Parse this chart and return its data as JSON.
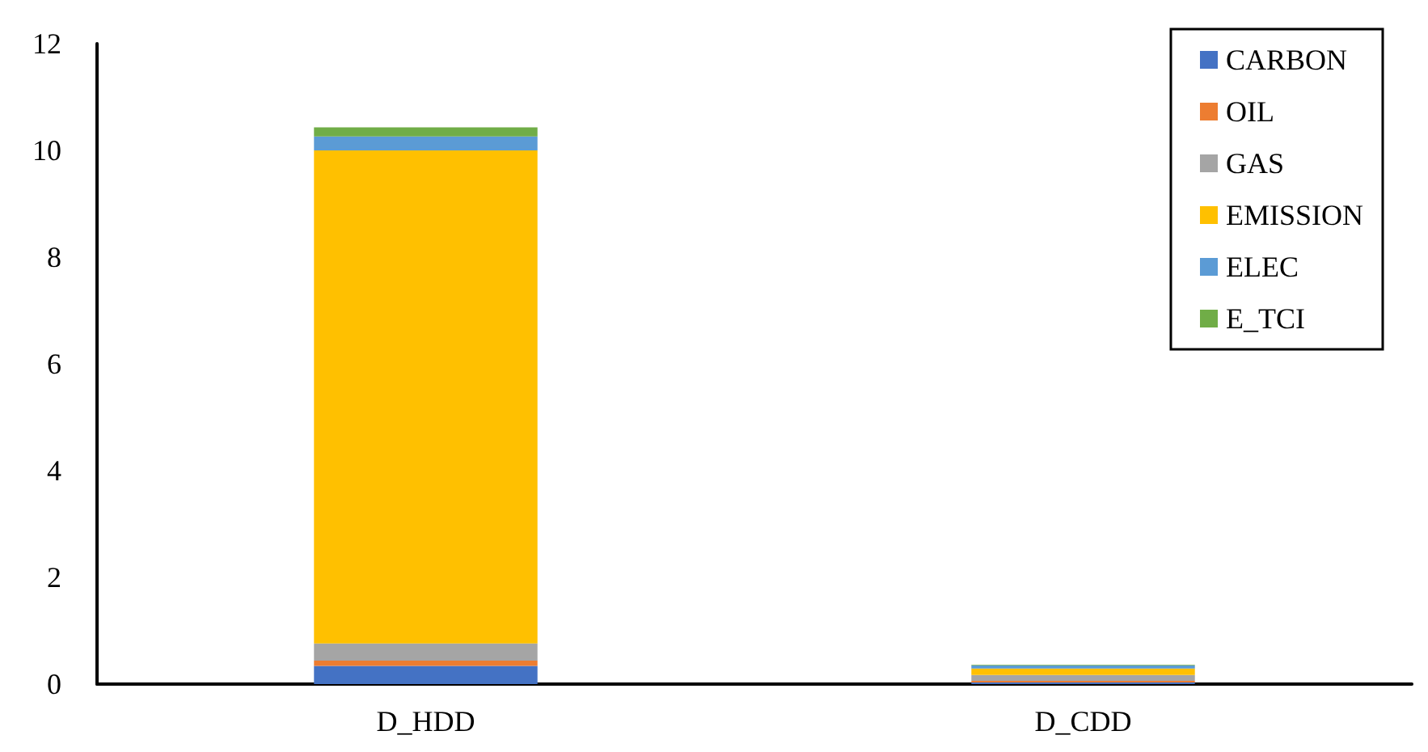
{
  "chart_data": {
    "type": "bar",
    "stacked": true,
    "categories": [
      "D_HDD",
      "D_CDD"
    ],
    "series": [
      {
        "name": "CARBON",
        "color": "#4472c4",
        "values": [
          0.34,
          0.03
        ]
      },
      {
        "name": "OIL",
        "color": "#ed7d31",
        "values": [
          0.1,
          0.03
        ]
      },
      {
        "name": "GAS",
        "color": "#a5a5a5",
        "values": [
          0.32,
          0.11
        ]
      },
      {
        "name": "EMISSION",
        "color": "#ffc000",
        "values": [
          9.24,
          0.12
        ]
      },
      {
        "name": "ELEC",
        "color": "#5b9bd5",
        "values": [
          0.26,
          0.06
        ]
      },
      {
        "name": "E_TCI",
        "color": "#70ad47",
        "values": [
          0.17,
          0.01
        ]
      }
    ],
    "ylim": [
      0,
      12
    ],
    "yticks": [
      0,
      2,
      4,
      6,
      8,
      10,
      12
    ],
    "grid": false,
    "legend": "top right"
  }
}
